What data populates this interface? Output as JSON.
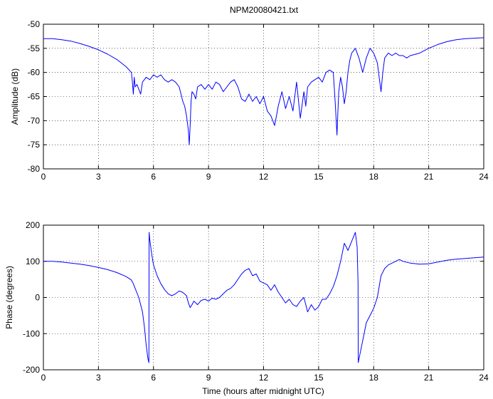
{
  "chart_data": [
    {
      "type": "line",
      "title": "NPM20080421.txt",
      "xlabel": "",
      "ylabel": "Amplitude (dB)",
      "xlim": [
        0,
        24
      ],
      "ylim": [
        -80,
        -50
      ],
      "xticks": [
        0,
        3,
        6,
        9,
        12,
        15,
        18,
        21,
        24
      ],
      "yticks": [
        -80,
        -75,
        -70,
        -65,
        -60,
        -55,
        -50
      ],
      "grid": "dotted",
      "color": "#0000ff",
      "series": [
        {
          "x": [
            0,
            0.5,
            1,
            1.5,
            2,
            2.5,
            3,
            3.5,
            4,
            4.5,
            4.8,
            4.85,
            4.9,
            4.95,
            5.0,
            5.1,
            5.2,
            5.3,
            5.4,
            5.5,
            5.6,
            5.8,
            6.0,
            6.2,
            6.4,
            6.6,
            6.8,
            7.0,
            7.2,
            7.4,
            7.5,
            7.6,
            7.7,
            7.8,
            7.9,
            7.95,
            8.0,
            8.05,
            8.1,
            8.2,
            8.3,
            8.4,
            8.6,
            8.8,
            9.0,
            9.2,
            9.4,
            9.6,
            9.8,
            10.0,
            10.2,
            10.4,
            10.6,
            10.8,
            11.0,
            11.2,
            11.4,
            11.6,
            11.8,
            12.0,
            12.2,
            12.4,
            12.5,
            12.6,
            12.7,
            12.8,
            13.0,
            13.2,
            13.4,
            13.6,
            13.8,
            14.0,
            14.2,
            14.3,
            14.4,
            14.6,
            14.8,
            15.0,
            15.2,
            15.4,
            15.6,
            15.8,
            15.9,
            16.0,
            16.05,
            16.1,
            16.2,
            16.3,
            16.4,
            16.5,
            16.6,
            16.7,
            16.8,
            17.0,
            17.2,
            17.4,
            17.6,
            17.8,
            18.0,
            18.2,
            18.3,
            18.4,
            18.5,
            18.6,
            18.8,
            19.0,
            19.2,
            19.4,
            19.6,
            19.8,
            20.0,
            20.5,
            21.0,
            21.5,
            22.0,
            22.5,
            23.0,
            23.5,
            24.0
          ],
          "values": [
            -53,
            -53,
            -53.2,
            -53.5,
            -54,
            -54.6,
            -55.3,
            -56.2,
            -57.3,
            -58.8,
            -60,
            -62,
            -64.5,
            -61,
            -63,
            -62.5,
            -63.5,
            -64.5,
            -62,
            -61.5,
            -61,
            -61.5,
            -60.5,
            -61,
            -60.5,
            -61.5,
            -62,
            -61.5,
            -62,
            -63,
            -64.5,
            -66,
            -67,
            -69,
            -72,
            -75,
            -71,
            -66,
            -64,
            -64.5,
            -65.5,
            -63,
            -62.5,
            -63.5,
            -62.5,
            -63.5,
            -62,
            -62.5,
            -64,
            -63,
            -62,
            -61.5,
            -63,
            -65.5,
            -66,
            -64.5,
            -66,
            -65,
            -66.5,
            -65,
            -68,
            -69,
            -70,
            -71,
            -69,
            -67,
            -64,
            -67.5,
            -65,
            -68,
            -62,
            -69.5,
            -64,
            -67,
            -63,
            -62,
            -61.5,
            -61,
            -62,
            -60,
            -59.5,
            -60,
            -66,
            -73,
            -68,
            -64,
            -61,
            -63,
            -66.5,
            -64,
            -60,
            -57.5,
            -56,
            -55,
            -57,
            -60,
            -57,
            -55,
            -56,
            -58,
            -61,
            -64,
            -60,
            -57,
            -56,
            -56.5,
            -56,
            -56.5,
            -56.5,
            -57,
            -56.5,
            -56,
            -55,
            -54.2,
            -53.6,
            -53.2,
            -53,
            -52.9,
            -52.8
          ]
        }
      ]
    },
    {
      "type": "line",
      "title": "",
      "xlabel": "Time (hours after midnight UTC)",
      "ylabel": "Phase (degrees)",
      "xlim": [
        0,
        24
      ],
      "ylim": [
        -200,
        200
      ],
      "xticks": [
        0,
        3,
        6,
        9,
        12,
        15,
        18,
        21,
        24
      ],
      "yticks": [
        -200,
        -100,
        0,
        100,
        200
      ],
      "grid": "dotted",
      "color": "#0000ff",
      "series": [
        {
          "x": [
            0,
            0.5,
            1,
            1.5,
            2,
            2.5,
            3,
            3.5,
            4,
            4.5,
            4.8,
            4.9,
            5.0,
            5.2,
            5.4,
            5.5,
            5.6,
            5.7,
            5.75,
            5.76,
            5.8,
            5.9,
            6.0,
            6.2,
            6.4,
            6.6,
            6.8,
            7.0,
            7.2,
            7.4,
            7.6,
            7.8,
            7.9,
            8.0,
            8.1,
            8.2,
            8.4,
            8.6,
            8.8,
            9.0,
            9.2,
            9.4,
            9.6,
            9.8,
            10.0,
            10.2,
            10.4,
            10.6,
            10.8,
            11.0,
            11.2,
            11.4,
            11.6,
            11.8,
            12.0,
            12.2,
            12.4,
            12.6,
            12.8,
            13.0,
            13.2,
            13.4,
            13.6,
            13.8,
            14.0,
            14.2,
            14.4,
            14.6,
            14.8,
            15.0,
            15.2,
            15.4,
            15.6,
            15.8,
            16.0,
            16.2,
            16.4,
            16.6,
            16.8,
            17.0,
            17.1,
            17.15,
            17.16,
            17.2,
            17.4,
            17.6,
            17.8,
            18.0,
            18.2,
            18.4,
            18.6,
            18.8,
            19.0,
            19.2,
            19.4,
            19.6,
            20.0,
            20.5,
            21.0,
            21.5,
            22.0,
            22.5,
            23.0,
            23.5,
            24.0
          ],
          "values": [
            100,
            100,
            98,
            95,
            92,
            88,
            83,
            77,
            69,
            58,
            48,
            38,
            25,
            0,
            -40,
            -80,
            -130,
            -170,
            -180,
            180,
            160,
            120,
            90,
            60,
            38,
            22,
            10,
            5,
            10,
            18,
            14,
            5,
            -15,
            -28,
            -20,
            -10,
            -20,
            -8,
            -5,
            -10,
            -2,
            -5,
            0,
            10,
            20,
            25,
            35,
            50,
            65,
            75,
            80,
            60,
            65,
            45,
            40,
            35,
            20,
            35,
            15,
            0,
            -15,
            -5,
            -20,
            -25,
            -10,
            0,
            -40,
            -20,
            -35,
            -25,
            -5,
            -5,
            10,
            30,
            60,
            100,
            150,
            130,
            155,
            180,
            140,
            40,
            -180,
            -170,
            -120,
            -70,
            -50,
            -30,
            0,
            60,
            80,
            90,
            95,
            100,
            105,
            100,
            95,
            92,
            93,
            98,
            103,
            106,
            108,
            110,
            112
          ]
        }
      ]
    }
  ]
}
